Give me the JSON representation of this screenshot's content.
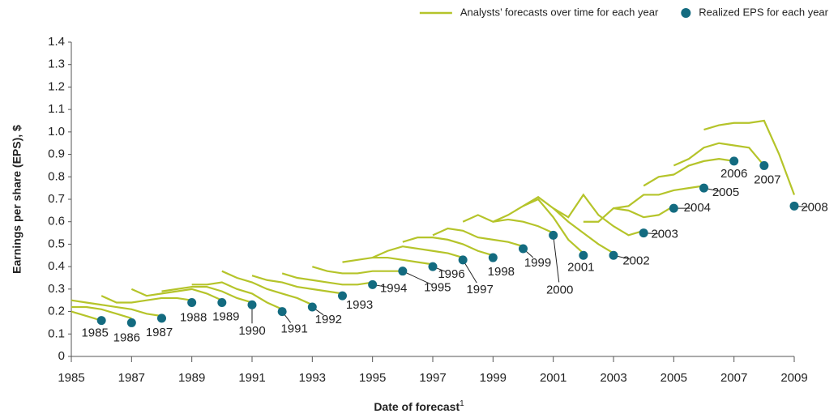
{
  "chart_data": {
    "type": "line",
    "xlabel": "Date of forecast",
    "xlabel_note": "1",
    "ylabel": "Earnings per share (EPS), $",
    "xlim": [
      1985,
      2009
    ],
    "xticks": [
      1985,
      1987,
      1989,
      1991,
      1993,
      1995,
      1997,
      1999,
      2001,
      2003,
      2005,
      2007,
      2009
    ],
    "ylim": [
      0,
      1.4
    ],
    "yticks": [
      0,
      0.1,
      0.2,
      0.3,
      0.4,
      0.5,
      0.6,
      0.7,
      0.8,
      0.9,
      {
        "value": 1,
        "label": "1.0"
      },
      1.1,
      1.2,
      1.3,
      1.4
    ],
    "grid": false,
    "legend": "top-right",
    "series": [
      {
        "name": "Analysts’ forecasts over time for each year",
        "color": "#b5c42a",
        "type": "line",
        "lines": [
          {
            "x": [
              1985,
              1985.5,
              1986
            ],
            "values": [
              0.2,
              0.18,
              0.16
            ]
          },
          {
            "x": [
              1985,
              1985.5,
              1986,
              1986.5,
              1987
            ],
            "values": [
              0.22,
              0.22,
              0.21,
              0.19,
              0.17
            ]
          },
          {
            "x": [
              1985,
              1985.5,
              1986,
              1986.5,
              1987,
              1987.5,
              1988
            ],
            "values": [
              0.25,
              0.24,
              0.23,
              0.22,
              0.21,
              0.19,
              0.18
            ]
          },
          {
            "x": [
              1986,
              1986.5,
              1987,
              1987.5,
              1988,
              1988.5,
              1989
            ],
            "values": [
              0.27,
              0.24,
              0.24,
              0.25,
              0.26,
              0.26,
              0.25
            ]
          },
          {
            "x": [
              1987,
              1987.5,
              1988,
              1988.5,
              1989,
              1989.5,
              1990
            ],
            "values": [
              0.3,
              0.27,
              0.28,
              0.29,
              0.3,
              0.28,
              0.25
            ]
          },
          {
            "x": [
              1988,
              1988.5,
              1989,
              1989.5,
              1990,
              1990.5,
              1991
            ],
            "values": [
              0.29,
              0.3,
              0.31,
              0.31,
              0.29,
              0.26,
              0.24
            ]
          },
          {
            "x": [
              1989,
              1989.5,
              1990,
              1990.5,
              1991,
              1991.5,
              1992
            ],
            "values": [
              0.32,
              0.32,
              0.33,
              0.3,
              0.28,
              0.24,
              0.21
            ]
          },
          {
            "x": [
              1990,
              1990.5,
              1991,
              1991.5,
              1992,
              1992.5,
              1993
            ],
            "values": [
              0.38,
              0.35,
              0.33,
              0.3,
              0.28,
              0.26,
              0.23
            ]
          },
          {
            "x": [
              1991,
              1991.5,
              1992,
              1992.5,
              1993,
              1993.5,
              1994
            ],
            "values": [
              0.36,
              0.34,
              0.33,
              0.31,
              0.3,
              0.29,
              0.28
            ]
          },
          {
            "x": [
              1992,
              1992.5,
              1993,
              1993.5,
              1994,
              1994.5,
              1995
            ],
            "values": [
              0.37,
              0.35,
              0.34,
              0.33,
              0.32,
              0.32,
              0.33
            ]
          },
          {
            "x": [
              1993,
              1993.5,
              1994,
              1994.5,
              1995,
              1995.5,
              1996
            ],
            "values": [
              0.4,
              0.38,
              0.37,
              0.37,
              0.38,
              0.38,
              0.38
            ]
          },
          {
            "x": [
              1994,
              1994.5,
              1995,
              1995.5,
              1996,
              1996.5,
              1997
            ],
            "values": [
              0.42,
              0.43,
              0.44,
              0.44,
              0.43,
              0.42,
              0.41
            ]
          },
          {
            "x": [
              1995,
              1995.5,
              1996,
              1996.5,
              1997,
              1997.5,
              1998
            ],
            "values": [
              0.44,
              0.47,
              0.49,
              0.48,
              0.47,
              0.46,
              0.44
            ]
          },
          {
            "x": [
              1996,
              1996.5,
              1997,
              1997.5,
              1998,
              1998.5,
              1999
            ],
            "values": [
              0.51,
              0.53,
              0.53,
              0.52,
              0.5,
              0.47,
              0.45
            ]
          },
          {
            "x": [
              1997,
              1997.5,
              1998,
              1998.5,
              1999,
              1999.5,
              2000
            ],
            "values": [
              0.54,
              0.57,
              0.56,
              0.53,
              0.52,
              0.51,
              0.49
            ]
          },
          {
            "x": [
              1998,
              1998.5,
              1999,
              1999.5,
              2000,
              2000.5,
              2001
            ],
            "values": [
              0.6,
              0.63,
              0.6,
              0.61,
              0.6,
              0.58,
              0.55
            ]
          },
          {
            "x": [
              1999,
              1999.5,
              2000,
              2000.5,
              2001,
              2001.5,
              2002
            ],
            "values": [
              0.6,
              0.63,
              0.67,
              0.7,
              0.62,
              0.52,
              0.46
            ]
          },
          {
            "x": [
              2000,
              2000.5,
              2001,
              2001.5,
              2002,
              2002.5,
              2003
            ],
            "values": [
              0.67,
              0.71,
              0.66,
              0.6,
              0.55,
              0.5,
              0.46
            ]
          },
          {
            "x": [
              2001,
              2001.5,
              2002,
              2002.5,
              2003,
              2003.5,
              2004
            ],
            "values": [
              0.66,
              0.62,
              0.72,
              0.63,
              0.58,
              0.54,
              0.56
            ]
          },
          {
            "x": [
              2002,
              2002.5,
              2003,
              2003.5,
              2004,
              2004.5,
              2005
            ],
            "values": [
              0.6,
              0.6,
              0.66,
              0.65,
              0.62,
              0.63,
              0.67
            ]
          },
          {
            "x": [
              2003,
              2003.5,
              2004,
              2004.5,
              2005,
              2005.5,
              2006
            ],
            "values": [
              0.66,
              0.67,
              0.72,
              0.72,
              0.74,
              0.75,
              0.76
            ]
          },
          {
            "x": [
              2004,
              2004.5,
              2005,
              2005.5,
              2006,
              2006.5,
              2007
            ],
            "values": [
              0.76,
              0.8,
              0.81,
              0.85,
              0.87,
              0.88,
              0.87
            ]
          },
          {
            "x": [
              2005,
              2005.5,
              2006,
              2006.5,
              2007,
              2007.5,
              2008
            ],
            "values": [
              0.85,
              0.88,
              0.93,
              0.95,
              0.94,
              0.93,
              0.85
            ]
          },
          {
            "x": [
              2006,
              2006.5,
              2007,
              2007.5,
              2008,
              2008.5,
              2009
            ],
            "values": [
              1.01,
              1.03,
              1.04,
              1.04,
              1.05,
              0.9,
              0.72
            ]
          }
        ]
      },
      {
        "name": "Realized EPS for each year",
        "color": "#136b80",
        "type": "scatter",
        "x": [
          1986,
          1987,
          1988,
          1989,
          1990,
          1991,
          1992,
          1993,
          1994,
          1995,
          1996,
          1997,
          1998,
          1999,
          2000,
          2001,
          2002,
          2003,
          2004,
          2005,
          2006,
          2007,
          2008,
          2009
        ],
        "values": [
          0.16,
          0.15,
          0.17,
          0.24,
          0.24,
          0.23,
          0.2,
          0.22,
          0.27,
          0.32,
          0.38,
          0.4,
          0.43,
          0.44,
          0.48,
          0.54,
          0.45,
          0.45,
          0.55,
          0.66,
          0.75,
          0.87,
          0.85,
          0.67
        ],
        "labels": [
          "1985",
          "1986",
          "1987",
          "1988",
          "1989",
          "1990",
          "1991",
          "1992",
          "1993",
          "1994",
          "1995",
          "1996",
          "1997",
          "1998",
          "1999",
          "2000",
          "2001",
          "2002",
          "2003",
          "2004",
          "2005",
          "2006",
          "2007",
          "2008"
        ]
      }
    ]
  }
}
